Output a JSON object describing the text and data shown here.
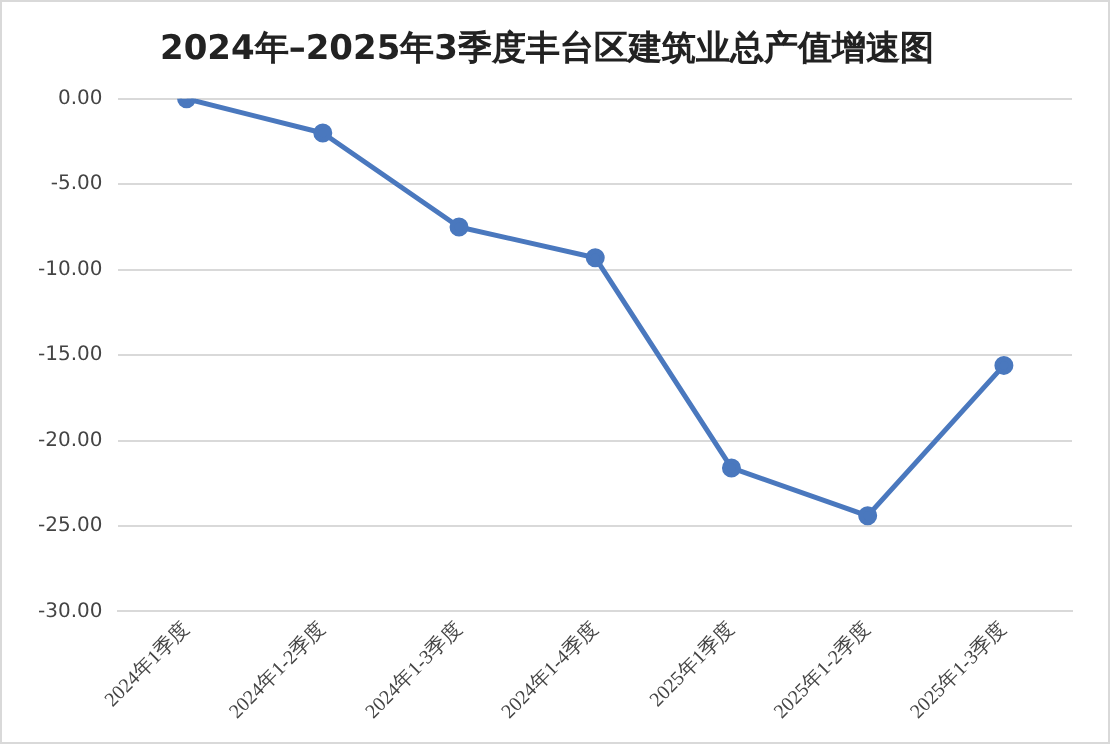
{
  "chart_data": {
    "type": "line",
    "title": "2024年–2025年3季度丰台区建筑业总产值增速图",
    "categories": [
      "2024年1季度",
      "2024年1-2季度",
      "2024年1-3季度",
      "2024年1-4季度",
      "2025年1季度",
      "2025年1-2季度",
      "2025年1-3季度"
    ],
    "series": [
      {
        "color": "#4a78be",
        "values": [
          0,
          -2.0,
          -7.5,
          -9.3,
          -21.6,
          -24.4,
          -15.6
        ]
      }
    ],
    "ylim": [
      -30,
      0
    ],
    "yticks": [
      {
        "value": 0,
        "label": "0.00"
      },
      {
        "value": -5,
        "label": "-5.00"
      },
      {
        "value": -10,
        "label": "-10.00"
      },
      {
        "value": -15,
        "label": "-15.00"
      },
      {
        "value": -20,
        "label": "-20.00"
      },
      {
        "value": -25,
        "label": "-25.00"
      },
      {
        "value": -30,
        "label": "-30.00"
      }
    ],
    "grid": "y",
    "legend": false,
    "marker": "circle",
    "line_style": "solid"
  }
}
